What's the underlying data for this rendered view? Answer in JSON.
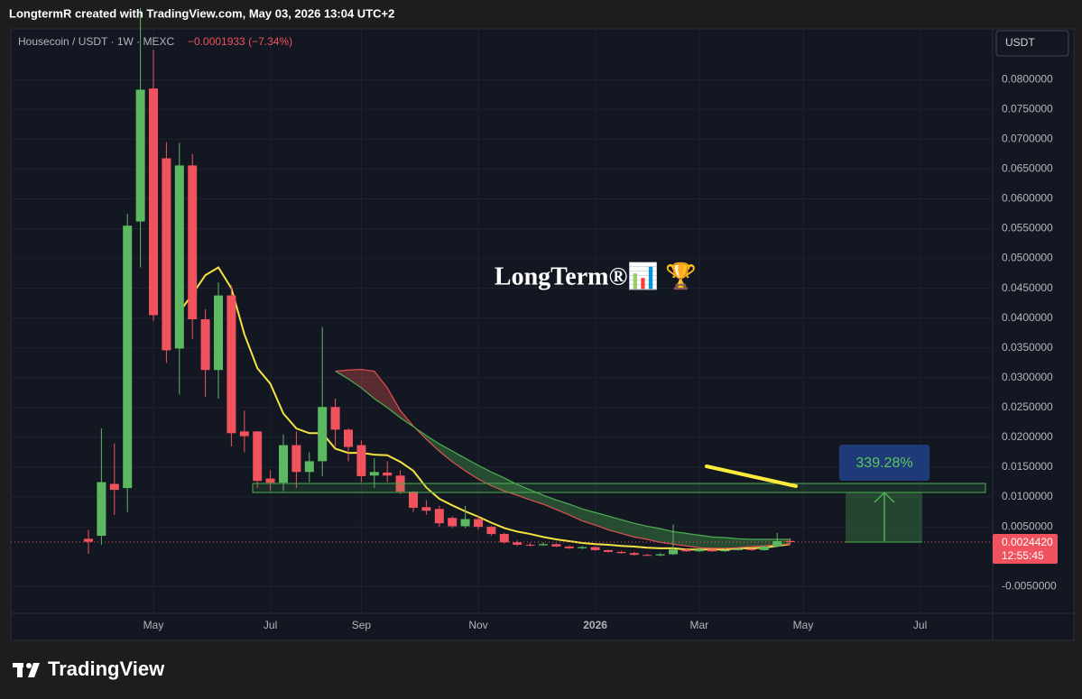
{
  "header": {
    "caption": "LongtermR created with TradingView.com, May 03, 2026 13:04 UTC+2"
  },
  "footer": {
    "brand": "TradingView"
  },
  "chart_data": {
    "type": "candlestick",
    "subtitle": "Housecoin / USDT · 1W · MEXC",
    "change_label": "−0.0001933 (−7.34%)",
    "currency_button": "USDT",
    "watermark": "LongTerm®📊 🏆",
    "measure_label": "339.28%",
    "countdown": "12:55:45",
    "last_price": {
      "value": 0.002442,
      "label": "0.0024420"
    },
    "up_color": "#5cb861",
    "down_color": "#f0525e",
    "grid": true,
    "ylim": [
      -0.0095,
      0.0885
    ],
    "yticks": [
      {
        "value": 0.08,
        "label": "0.0800000"
      },
      {
        "value": 0.075,
        "label": "0.0750000"
      },
      {
        "value": 0.07,
        "label": "0.0700000"
      },
      {
        "value": 0.065,
        "label": "0.0650000"
      },
      {
        "value": 0.06,
        "label": "0.0600000"
      },
      {
        "value": 0.055,
        "label": "0.0550000"
      },
      {
        "value": 0.05,
        "label": "0.0500000"
      },
      {
        "value": 0.045,
        "label": "0.0450000"
      },
      {
        "value": 0.04,
        "label": "0.0400000"
      },
      {
        "value": 0.035,
        "label": "0.0350000"
      },
      {
        "value": 0.03,
        "label": "0.0300000"
      },
      {
        "value": 0.025,
        "label": "0.0250000"
      },
      {
        "value": 0.02,
        "label": "0.0200000"
      },
      {
        "value": 0.015,
        "label": "0.0150000"
      },
      {
        "value": 0.01,
        "label": "0.0100000"
      },
      {
        "value": 0.005,
        "label": "0.0050000"
      },
      {
        "value": -0.005,
        "label": "-0.0050000"
      }
    ],
    "categories": [
      null,
      null,
      null,
      null,
      null,
      "May",
      null,
      null,
      null,
      null,
      null,
      null,
      null,
      null,
      "Jul",
      null,
      null,
      null,
      null,
      null,
      null,
      "Sep",
      null,
      null,
      null,
      null,
      null,
      null,
      null,
      null,
      "Nov",
      null,
      null,
      null,
      null,
      null,
      null,
      null,
      null,
      "2026",
      null,
      null,
      null,
      null,
      null,
      null,
      null,
      "Mar",
      null,
      null,
      null,
      null,
      null,
      null,
      null,
      "May",
      null,
      null,
      null,
      null,
      null,
      null,
      null,
      null,
      "Jul",
      null,
      null,
      null,
      null,
      null
    ],
    "open": [
      0.003,
      0.0035,
      0.0122,
      0.0115,
      0.0562,
      0.0785,
      0.0668,
      0.0349,
      0.0656,
      0.0398,
      0.0313,
      0.0438,
      0.021,
      0.021,
      0.0131,
      0.0124,
      0.0187,
      0.0142,
      0.016,
      0.0251,
      0.0213,
      0.0187,
      0.0136,
      0.0141,
      0.0136,
      0.0109,
      0.0083,
      0.008,
      0.0065,
      0.0051,
      0.0063,
      0.005,
      0.0038,
      0.0024,
      0.002,
      0.0019,
      0.0021,
      0.0017,
      0.0014,
      0.0016,
      0.0011,
      0.0008,
      0.0006,
      0.0003,
      0.0002,
      0.0004,
      0.0012,
      0.0009,
      0.0012,
      0.0009,
      0.0011,
      0.0013,
      0.0011,
      0.0017,
      0.0026353,
      null,
      null,
      null,
      null,
      null,
      null,
      null,
      null,
      null,
      null,
      null,
      null,
      null,
      null,
      null
    ],
    "high": [
      0.0045,
      0.0215,
      0.019,
      0.0575,
      0.092,
      0.085,
      0.0695,
      0.0694,
      0.0675,
      0.0415,
      0.046,
      0.0455,
      0.0245,
      0.021,
      0.0145,
      0.0205,
      0.021,
      0.0175,
      0.0385,
      0.0265,
      0.0215,
      0.0195,
      0.0165,
      0.016,
      0.0145,
      0.011,
      0.0095,
      0.0085,
      0.0068,
      0.0085,
      0.0068,
      0.0052,
      0.004,
      0.0027,
      0.0023,
      0.0024,
      0.0022,
      0.0019,
      0.0018,
      0.0017,
      0.0012,
      0.001,
      0.0008,
      0.0005,
      0.0006,
      0.0054,
      0.0014,
      0.0014,
      0.0013,
      0.0013,
      0.0015,
      0.0014,
      0.0019,
      0.004,
      0.0031,
      null,
      null,
      null,
      null,
      null,
      null,
      null,
      null,
      null,
      null,
      null,
      null,
      null,
      null,
      null
    ],
    "low": [
      0.0005,
      0.002,
      0.007,
      0.0075,
      0.0485,
      0.0395,
      0.0325,
      0.0272,
      0.0365,
      0.0268,
      0.0265,
      0.0185,
      0.0175,
      0.0115,
      0.011,
      0.011,
      0.0115,
      0.0125,
      0.0135,
      0.0185,
      0.016,
      0.0125,
      0.0115,
      0.0125,
      0.0105,
      0.0075,
      0.007,
      0.005,
      0.0048,
      0.0048,
      0.0045,
      0.0035,
      0.0022,
      0.0018,
      0.0017,
      0.0018,
      0.0016,
      0.0013,
      0.0013,
      0.001,
      0.0007,
      0.0005,
      0.0002,
      0.0001,
      0.0001,
      0.0003,
      0.0008,
      0.0008,
      0.0008,
      0.0008,
      0.001,
      0.001,
      0.001,
      0.0016,
      0.0022,
      null,
      null,
      null,
      null,
      null,
      null,
      null,
      null,
      null,
      null,
      null,
      null,
      null,
      null,
      null
    ],
    "close": [
      0.0025,
      0.0125,
      0.0112,
      0.0555,
      0.0783,
      0.0405,
      0.0346,
      0.0656,
      0.0398,
      0.0313,
      0.0438,
      0.0207,
      0.0202,
      0.0127,
      0.0124,
      0.0187,
      0.0142,
      0.016,
      0.0251,
      0.0213,
      0.0184,
      0.0135,
      0.0142,
      0.0136,
      0.0109,
      0.0082,
      0.0077,
      0.0056,
      0.0051,
      0.0063,
      0.005,
      0.0038,
      0.0024,
      0.002,
      0.0019,
      0.0021,
      0.0017,
      0.0014,
      0.0016,
      0.0011,
      0.0008,
      0.0006,
      0.0003,
      0.0002,
      0.0004,
      0.0012,
      0.0009,
      0.0012,
      0.0009,
      0.0011,
      0.0013,
      0.0011,
      0.0017,
      0.0026,
      0.002442,
      null,
      null,
      null,
      null,
      null,
      null,
      null,
      null,
      null,
      null,
      null,
      null,
      null,
      null,
      null
    ],
    "series": [
      {
        "color": "#f5e342",
        "values": [
          null,
          null,
          null,
          null,
          null,
          null,
          null,
          0.041,
          0.044,
          0.0472,
          0.0485,
          0.045,
          0.0373,
          0.0316,
          0.029,
          0.024,
          0.0215,
          0.0207,
          0.0207,
          0.0181,
          0.0174,
          0.0174,
          0.0171,
          0.017,
          0.0159,
          0.0144,
          0.0116,
          0.0097,
          0.0086,
          0.0076,
          0.0067,
          0.0057,
          0.0048,
          0.0042,
          0.0038,
          0.0033,
          0.0029,
          0.0026,
          0.0023,
          0.0021,
          0.002,
          0.0018,
          0.0017,
          0.0015,
          0.0014,
          0.0014,
          0.0012,
          0.0012,
          0.0012,
          0.0012,
          0.0014,
          0.0014,
          0.0015,
          0.0018,
          0.0021,
          null,
          null,
          null,
          null,
          null,
          null,
          null,
          null,
          null,
          null,
          null,
          null,
          null,
          null,
          null
        ]
      },
      {
        "color": "#e0524f",
        "values": [
          null,
          null,
          null,
          null,
          null,
          null,
          null,
          null,
          null,
          null,
          null,
          null,
          null,
          null,
          null,
          null,
          null,
          null,
          null,
          0.0311,
          0.0313,
          0.0314,
          0.0311,
          0.0283,
          0.0245,
          0.0219,
          0.0197,
          0.0177,
          0.0159,
          0.0144,
          0.013,
          0.0119,
          0.011,
          0.0103,
          0.0095,
          0.0088,
          0.0079,
          0.007,
          0.006,
          0.0053,
          0.0045,
          0.0039,
          0.0033,
          0.0029,
          0.0024,
          0.0021,
          0.0018,
          0.0015,
          0.0014,
          0.0014,
          0.0015,
          0.0017,
          0.0018,
          0.002,
          0.0021,
          null,
          null,
          null,
          null,
          null,
          null,
          null,
          null,
          null,
          null,
          null,
          null,
          null,
          null,
          null
        ]
      },
      {
        "color": "#4caf50",
        "values": [
          null,
          null,
          null,
          null,
          null,
          null,
          null,
          null,
          null,
          null,
          null,
          null,
          null,
          null,
          null,
          null,
          null,
          null,
          null,
          0.0311,
          0.0298,
          0.0283,
          0.0265,
          0.025,
          0.0233,
          0.0218,
          0.0203,
          0.0189,
          0.0177,
          0.0165,
          0.0153,
          0.0142,
          0.0132,
          0.0121,
          0.0112,
          0.0103,
          0.0095,
          0.0088,
          0.008,
          0.0074,
          0.0068,
          0.0062,
          0.0056,
          0.0051,
          0.0047,
          0.0042,
          0.0039,
          0.0036,
          0.0033,
          0.0032,
          0.003,
          0.0029,
          0.0029,
          0.0029,
          0.0029,
          null,
          null,
          null,
          null,
          null,
          null,
          null,
          null,
          null,
          null,
          null,
          null,
          null,
          null,
          null
        ]
      }
    ]
  }
}
